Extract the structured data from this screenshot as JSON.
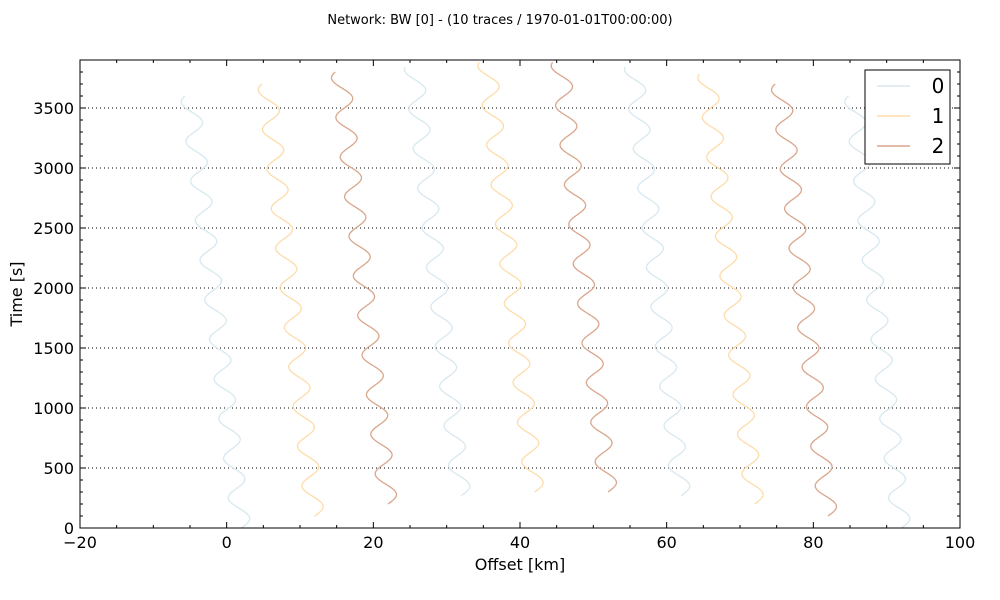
{
  "chart_data": {
    "type": "line",
    "title": "Network: BW [0] - (10 traces / 1970-01-01T00:00:00)",
    "xlabel": "Offset [km]",
    "ylabel": "Time [s]",
    "xlim": [
      -20,
      100
    ],
    "ylim": [
      0,
      3900
    ],
    "xticks": [
      -20,
      0,
      20,
      40,
      60,
      80,
      100
    ],
    "xtick_labels": [
      "−20",
      "0",
      "20",
      "40",
      "60",
      "80",
      "100"
    ],
    "yticks": [
      0,
      500,
      1000,
      1500,
      2000,
      2500,
      3000,
      3500
    ],
    "ytick_labels": [
      "0",
      "500",
      "1000",
      "1500",
      "2000",
      "2500",
      "3000",
      "3500"
    ],
    "grid": {
      "y": true,
      "x": false,
      "style": "dotted"
    },
    "legend": {
      "placement": "top-right",
      "entries": [
        "0",
        "1",
        "2"
      ]
    },
    "colors": {
      "0": "#d8e8ef",
      "1": "#fddcaa",
      "2": "#d9a68c"
    },
    "traces": [
      {
        "group": "0",
        "offset_start": 2.0,
        "offset_end": -5.0,
        "t_start": 0,
        "t_end": 3600,
        "amplitude": 1.3
      },
      {
        "group": "1",
        "offset_start": 12.0,
        "offset_end": 5.5,
        "t_start": 100,
        "t_end": 3700,
        "amplitude": 1.3
      },
      {
        "group": "2",
        "offset_start": 22.0,
        "offset_end": 15.5,
        "t_start": 200,
        "t_end": 3800,
        "amplitude": 1.3
      },
      {
        "group": "0",
        "offset_start": 32.0,
        "offset_end": 25.5,
        "t_start": 270,
        "t_end": 3840,
        "amplitude": 1.3
      },
      {
        "group": "1",
        "offset_start": 42.0,
        "offset_end": 35.5,
        "t_start": 300,
        "t_end": 3880,
        "amplitude": 1.3
      },
      {
        "group": "2",
        "offset_start": 52.0,
        "offset_end": 45.5,
        "t_start": 300,
        "t_end": 3880,
        "amplitude": 1.3
      },
      {
        "group": "0",
        "offset_start": 62.0,
        "offset_end": 55.5,
        "t_start": 270,
        "t_end": 3840,
        "amplitude": 1.3
      },
      {
        "group": "1",
        "offset_start": 72.0,
        "offset_end": 65.5,
        "t_start": 200,
        "t_end": 3780,
        "amplitude": 1.3
      },
      {
        "group": "2",
        "offset_start": 82.0,
        "offset_end": 75.5,
        "t_start": 100,
        "t_end": 3700,
        "amplitude": 1.3
      },
      {
        "group": "0",
        "offset_start": 92.0,
        "offset_end": 85.5,
        "t_start": 0,
        "t_end": 3600,
        "amplitude": 1.3
      }
    ]
  }
}
